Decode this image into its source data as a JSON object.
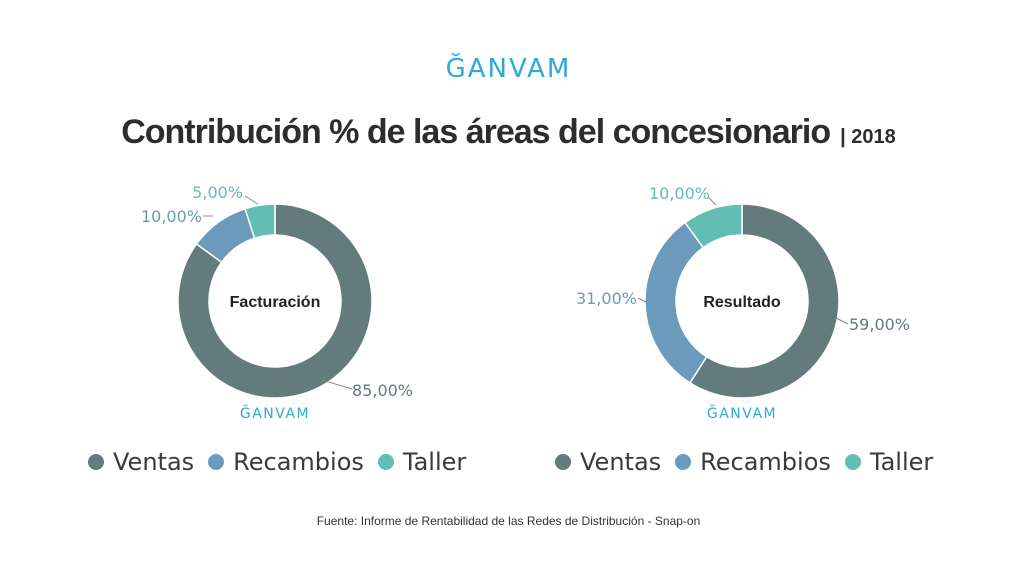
{
  "logo_text": "ĞANVAM",
  "title": "Contribución % de las áreas del concesionario",
  "year_label": "| 2018",
  "source": "Fuente: Informe de Rentabilidad de las Redes de Distribución - Snap-on",
  "colors": {
    "Ventas": "#647b7e",
    "Recambios": "#6b9abc",
    "Taller": "#62bdb2"
  },
  "chart_data": [
    {
      "type": "pie",
      "title": "Facturación",
      "categories": [
        "Ventas",
        "Recambios",
        "Taller"
      ],
      "values": [
        85.0,
        10.0,
        5.0
      ],
      "labels": [
        "85,00%",
        "10,00%",
        "5,00%"
      ],
      "legend": [
        "Ventas",
        "Recambios",
        "Taller"
      ]
    },
    {
      "type": "pie",
      "title": "Resultado",
      "categories": [
        "Ventas",
        "Recambios",
        "Taller"
      ],
      "values": [
        59.0,
        31.0,
        10.0
      ],
      "labels": [
        "59,00%",
        "31,00%",
        "10,00%"
      ],
      "legend": [
        "Ventas",
        "Recambios",
        "Taller"
      ]
    }
  ]
}
